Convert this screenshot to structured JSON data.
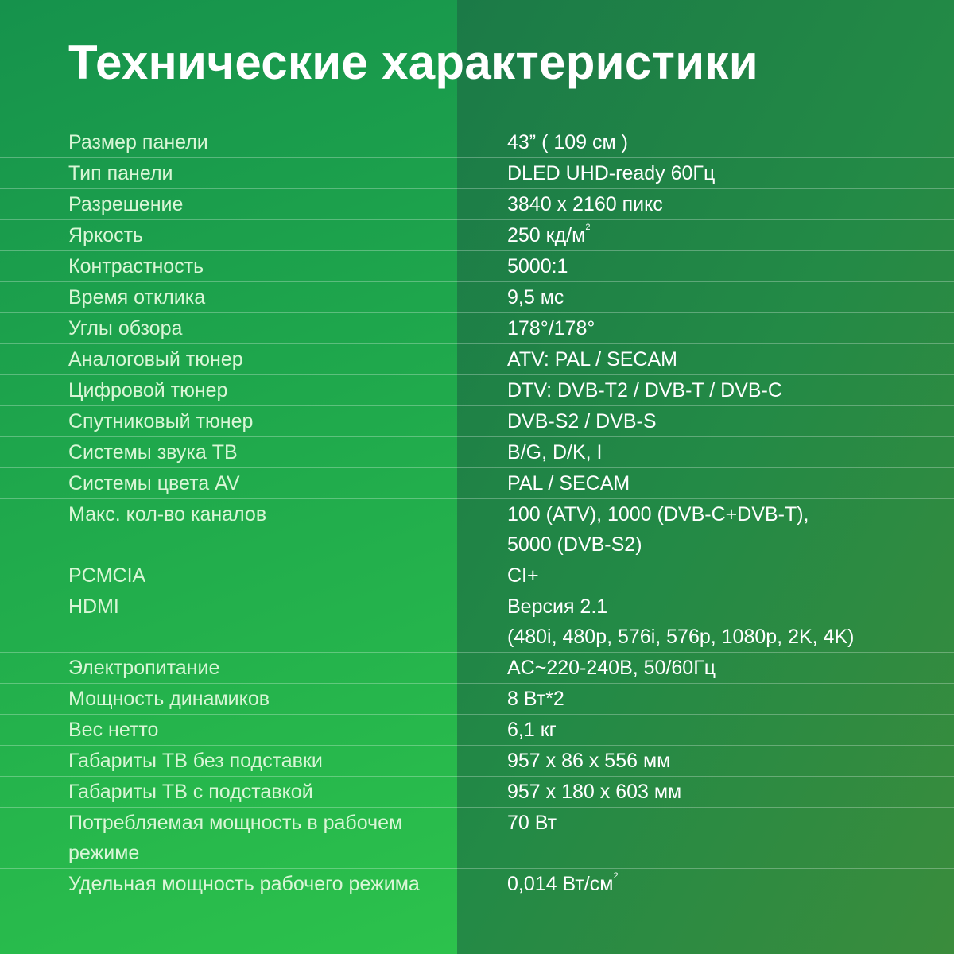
{
  "title": "Технические характеристики",
  "colors": {
    "left_panel": "#1fa84c",
    "right_panel": "#238a46",
    "label_text": "#d9f6d6",
    "value_text": "#ffffff"
  },
  "specs": [
    {
      "label": "Размер панели",
      "value": [
        "43” ( 109 см )"
      ]
    },
    {
      "label": "Тип панели",
      "value": [
        "DLED UHD-ready 60Гц"
      ]
    },
    {
      "label": "Разрешение",
      "value": [
        "3840 x 2160 пикс"
      ]
    },
    {
      "label": "Яркость",
      "value": [
        "250 кд/м"
      ],
      "sup": "2"
    },
    {
      "label": "Контрастность",
      "value": [
        "5000:1"
      ]
    },
    {
      "label": "Время отклика",
      "value": [
        "9,5 мс"
      ]
    },
    {
      "label": "Углы обзора",
      "value": [
        "178°/178°"
      ]
    },
    {
      "label": "Аналоговый тюнер",
      "value": [
        "ATV: PAL / SECAM"
      ]
    },
    {
      "label": "Цифровой тюнер",
      "value": [
        "DTV: DVB-T2 / DVB-T / DVB-C"
      ]
    },
    {
      "label": "Спутниковый тюнер",
      "value": [
        "DVB-S2 / DVB-S"
      ]
    },
    {
      "label": "Системы звука ТВ",
      "value": [
        "B/G, D/K, I"
      ]
    },
    {
      "label": "Системы цвета AV",
      "value": [
        "PAL / SECAM"
      ]
    },
    {
      "label": "Макс. кол-во каналов",
      "value": [
        "100 (ATV), 1000 (DVB-C+DVB-T),",
        "5000 (DVB-S2)"
      ]
    },
    {
      "label": "PCMCIA",
      "value": [
        "CI+"
      ]
    },
    {
      "label": "HDMI",
      "value": [
        "Версия 2.1",
        "(480i, 480p, 576i, 576p, 1080p, 2K, 4K)"
      ]
    },
    {
      "label": "Электропитание",
      "value": [
        "AC~220-240B, 50/60Гц"
      ]
    },
    {
      "label": "Мощность динамиков",
      "value": [
        "8 Вт*2"
      ]
    },
    {
      "label": "Вес нетто",
      "value": [
        "6,1 кг"
      ]
    },
    {
      "label": "Габариты ТВ без подставки",
      "value": [
        "957 x 86 x 556 мм"
      ]
    },
    {
      "label": "Габариты ТВ с подставкой",
      "value": [
        "957 x 180 x 603 мм"
      ]
    },
    {
      "label": "Потребляемая мощность в рабочем режиме",
      "value": [
        "70 Вт"
      ]
    },
    {
      "label": "Удельная мощность рабочего режима",
      "value": [
        "0,014 Вт/см"
      ],
      "sup": "2"
    }
  ]
}
